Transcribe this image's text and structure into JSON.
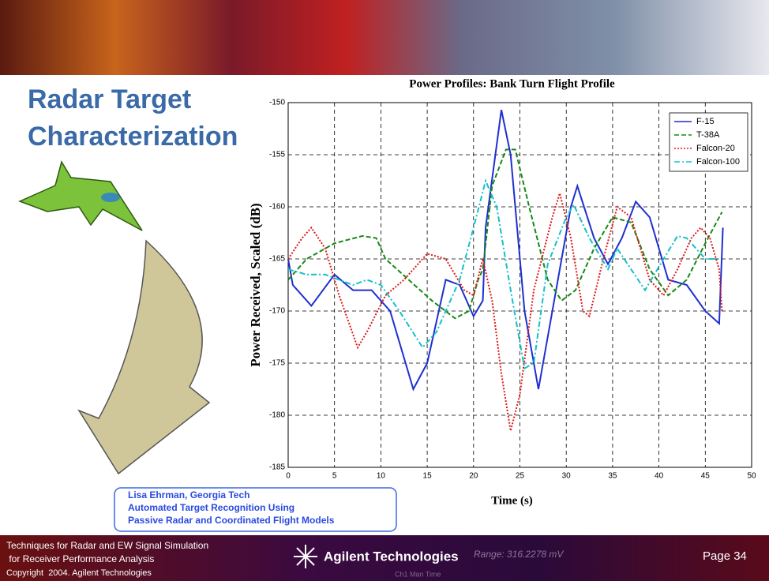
{
  "slide": {
    "title_lines": [
      "Radar Target",
      "Characterization"
    ],
    "citation_lines": [
      "Lisa Ehrman, Georgia Tech",
      "Automated Target Recognition Using",
      "Passive Radar and Coordinated Flight Models"
    ],
    "footer_lines": [
      "Techniques for Radar and EW Signal Simulation",
      " for Receiver Performance Analysis",
      "Copyright  2004. Agilent Technologies"
    ],
    "logo": "Agilent Technologies",
    "banner_texts": [
      "Range: 316.2278 mV",
      "Ch1 Man Time"
    ],
    "page": "Page 34"
  },
  "chart_data": {
    "type": "line",
    "title": "Power Profiles: Bank Turn Flight Profile",
    "x_label": "Time (s)",
    "y_label": "Power Received, Scaled (dB)",
    "xlim": [
      0,
      50
    ],
    "xticks": [
      0,
      5,
      10,
      15,
      20,
      25,
      30,
      35,
      40,
      45,
      50
    ],
    "ylim": [
      -185,
      -150
    ],
    "yticks": [
      -150,
      -155,
      -160,
      -165,
      -170,
      -175,
      -180,
      -185
    ],
    "grid": true,
    "legend": "top-right",
    "series": [
      {
        "name": "F-15",
        "color": "#1f2fd0",
        "linestyle": "solid",
        "x": [
          0,
          0.5,
          2.5,
          5,
          7,
          9,
          11,
          13.5,
          15,
          17,
          18.5,
          20,
          21,
          21.3,
          23,
          24,
          25.5,
          27,
          28.5,
          30.5,
          31.2,
          33,
          34.5,
          36,
          37.5,
          39,
          41,
          43,
          45,
          46.5,
          46.9
        ],
        "values": [
          -165,
          -167.5,
          -169.5,
          -166.5,
          -168,
          -168,
          -170,
          -177.5,
          -175,
          -167,
          -167.5,
          -170.5,
          -169,
          -162,
          -150.7,
          -155,
          -170,
          -177.5,
          -170,
          -160,
          -158,
          -163,
          -165.5,
          -163,
          -159.5,
          -161,
          -167,
          -167.5,
          -170,
          -171.2,
          -162
        ]
      },
      {
        "name": "T-38A",
        "color": "#138a13",
        "linestyle": "dashed",
        "x": [
          0,
          2,
          5,
          8,
          9.5,
          10.5,
          13,
          15.5,
          18,
          19.5,
          20.5,
          21,
          22,
          23.5,
          24.5,
          26,
          28,
          29.5,
          31,
          33,
          35,
          37,
          39,
          41,
          43,
          45,
          46.5,
          46.8
        ],
        "values": [
          -167,
          -165,
          -163.5,
          -162.8,
          -163,
          -165,
          -167,
          -169,
          -170.7,
          -170,
          -167,
          -166,
          -158,
          -154.5,
          -154.5,
          -160,
          -167,
          -169,
          -168,
          -164,
          -161,
          -161.5,
          -166,
          -168.5,
          -167,
          -163.5,
          -161,
          -160.5
        ]
      },
      {
        "name": "Falcon-20",
        "color": "#e01818",
        "linestyle": "dotted",
        "x": [
          0,
          1.5,
          2.5,
          4,
          5.5,
          7.5,
          8.5,
          10.5,
          12.5,
          14,
          15,
          17,
          19,
          20,
          21,
          22,
          23,
          24,
          25,
          26.5,
          28.5,
          29.3,
          30.5,
          31.8,
          32.5,
          34,
          35.5,
          37,
          39,
          40.5,
          42,
          43.5,
          44.5,
          45.5,
          46.5,
          46.8
        ],
        "values": [
          -165,
          -163,
          -162,
          -164,
          -168.5,
          -173.5,
          -172,
          -168.5,
          -167,
          -165.5,
          -164.5,
          -165,
          -168,
          -168.5,
          -165,
          -169,
          -176,
          -181.5,
          -178,
          -168,
          -161,
          -158.7,
          -163,
          -170,
          -170.5,
          -165,
          -160,
          -161,
          -167,
          -168.5,
          -166,
          -163,
          -162,
          -163,
          -166,
          -170
        ]
      },
      {
        "name": "Falcon-100",
        "color": "#14c0c8",
        "linestyle": "dashdot",
        "x": [
          0,
          2,
          4,
          5.5,
          7,
          8.5,
          10,
          12,
          14.5,
          16,
          18.5,
          20,
          21.3,
          22.5,
          24,
          25.5,
          26.5,
          28,
          30,
          30.8,
          32.5,
          34.5,
          35.5,
          37,
          38.5,
          40.5,
          42,
          43,
          45,
          46.5
        ],
        "values": [
          -166,
          -166.5,
          -166.5,
          -167,
          -167.5,
          -167,
          -167.5,
          -170,
          -173.5,
          -172,
          -167,
          -162,
          -157.5,
          -160,
          -168,
          -175.5,
          -175,
          -165.5,
          -161,
          -159.8,
          -163,
          -166,
          -164,
          -166,
          -168,
          -165,
          -162.8,
          -163,
          -165,
          -165
        ]
      }
    ]
  }
}
